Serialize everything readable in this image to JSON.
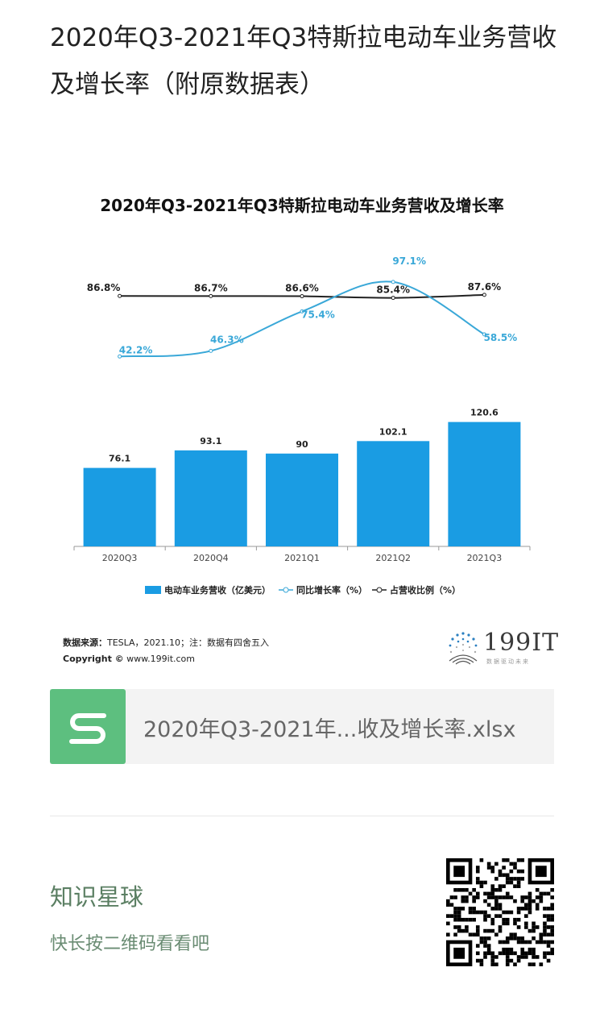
{
  "article": {
    "title": "2020年Q3-2021年Q3特斯拉电动车业务营收及增长率（附原数据表）"
  },
  "chart_data": {
    "type": "bar+line",
    "title": "2020年Q3-2021年Q3特斯拉电动车业务营收及增长率",
    "categories": [
      "2020Q3",
      "2020Q4",
      "2021Q1",
      "2021Q2",
      "2021Q3"
    ],
    "series": [
      {
        "name": "电动车业务营收（亿美元）",
        "type": "bar",
        "values": [
          76.1,
          93.1,
          90,
          102.1,
          120.6
        ]
      },
      {
        "name": "同比增长率（%）",
        "type": "line",
        "values": [
          42.2,
          46.3,
          75.4,
          97.1,
          58.5
        ]
      },
      {
        "name": "占营收比例（%）",
        "type": "line",
        "values": [
          86.8,
          86.7,
          86.6,
          85.4,
          87.6
        ]
      }
    ],
    "bar_labels": [
      "76.1",
      "93.1",
      "90",
      "102.1",
      "120.6"
    ],
    "yoy_labels": [
      "42.2%",
      "46.3%",
      "75.4%",
      "97.1%",
      "58.5%"
    ],
    "share_labels": [
      "86.8%",
      "86.7%",
      "86.6%",
      "85.4%",
      "87.6%"
    ],
    "legend_position": "bottom",
    "colors": {
      "bar": "#1a9ce3",
      "yoy_line": "#3aa8d8",
      "share_line": "#222222"
    }
  },
  "source": {
    "label": "数据来源：",
    "text": "TESLA，2021.10；注：数据有四舍五入",
    "copyright_label": "Copyright ©",
    "copyright_text": "www.199it.com"
  },
  "logo": {
    "text": "199IT",
    "sub": "数据驱动未来"
  },
  "attachment": {
    "icon": "spreadsheet-s-icon",
    "file_name": "2020年Q3-2021年...收及增长率.xlsx"
  },
  "footer": {
    "title": "知识星球",
    "subtitle": "快长按二维码看看吧",
    "qr_icon": "qr-code-icon"
  }
}
